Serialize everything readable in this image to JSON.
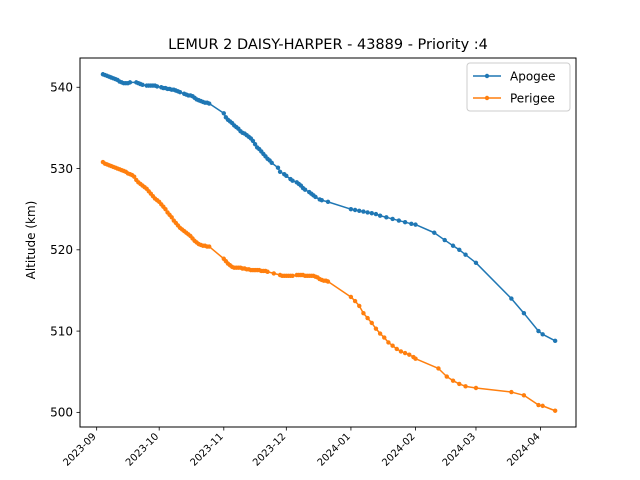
{
  "chart_data": {
    "type": "line",
    "title": "LEMUR 2 DAISY-HARPER - 43889 - Priority :4",
    "xlabel": "",
    "ylabel": "Altitude (km)",
    "xlim": [
      "2023-08-24",
      "2024-04-18"
    ],
    "ylim": [
      498.2,
      543.6
    ],
    "y_ticks": [
      500,
      510,
      520,
      530,
      540
    ],
    "x_ticks": [
      "2023-09",
      "2023-10",
      "2023-11",
      "2023-12",
      "2024-01",
      "2024-02",
      "2024-03",
      "2024-04"
    ],
    "grid": false,
    "legend_position": "upper right",
    "series": [
      {
        "name": "Apogee",
        "color": "#1f77b4",
        "x": [
          "2023-09-04",
          "2023-09-05",
          "2023-09-06",
          "2023-09-07",
          "2023-09-08",
          "2023-09-09",
          "2023-09-10",
          "2023-09-11",
          "2023-09-12",
          "2023-09-13",
          "2023-09-14",
          "2023-09-15",
          "2023-09-16",
          "2023-09-17",
          "2023-09-20",
          "2023-09-21",
          "2023-09-22",
          "2023-09-23",
          "2023-09-25",
          "2023-09-26",
          "2023-09-27",
          "2023-09-28",
          "2023-09-29",
          "2023-09-30",
          "2023-10-02",
          "2023-10-03",
          "2023-10-04",
          "2023-10-05",
          "2023-10-06",
          "2023-10-07",
          "2023-10-08",
          "2023-10-09",
          "2023-10-10",
          "2023-10-11",
          "2023-10-13",
          "2023-10-14",
          "2023-10-15",
          "2023-10-16",
          "2023-10-17",
          "2023-10-18",
          "2023-10-19",
          "2023-10-20",
          "2023-10-21",
          "2023-10-22",
          "2023-10-23",
          "2023-10-24",
          "2023-10-25",
          "2023-11-01",
          "2023-11-02",
          "2023-11-03",
          "2023-11-04",
          "2023-11-05",
          "2023-11-06",
          "2023-11-07",
          "2023-11-08",
          "2023-11-09",
          "2023-11-10",
          "2023-11-11",
          "2023-11-12",
          "2023-11-13",
          "2023-11-14",
          "2023-11-15",
          "2023-11-16",
          "2023-11-17",
          "2023-11-18",
          "2023-11-19",
          "2023-11-20",
          "2023-11-21",
          "2023-11-22",
          "2023-11-23",
          "2023-11-24",
          "2023-11-27",
          "2023-11-28",
          "2023-11-30",
          "2023-12-01",
          "2023-12-03",
          "2023-12-04",
          "2023-12-06",
          "2023-12-07",
          "2023-12-08",
          "2023-12-09",
          "2023-12-10",
          "2023-12-12",
          "2023-12-13",
          "2023-12-14",
          "2023-12-15",
          "2023-12-17",
          "2023-12-18",
          "2023-12-21",
          "2024-01-01",
          "2024-01-03",
          "2024-01-05",
          "2024-01-07",
          "2024-01-09",
          "2024-01-11",
          "2024-01-13",
          "2024-01-15",
          "2024-01-18",
          "2024-01-21",
          "2024-01-24",
          "2024-01-27",
          "2024-01-30",
          "2024-02-01",
          "2024-02-10",
          "2024-02-15",
          "2024-02-19",
          "2024-02-22",
          "2024-02-25",
          "2024-03-01",
          "2024-03-18",
          "2024-03-24",
          "2024-03-31",
          "2024-04-02",
          "2024-04-08"
        ],
        "values": [
          541.6,
          541.5,
          541.4,
          541.3,
          541.2,
          541.1,
          541.0,
          540.9,
          540.7,
          540.6,
          540.5,
          540.5,
          540.5,
          540.6,
          540.6,
          540.5,
          540.4,
          540.3,
          540.2,
          540.2,
          540.2,
          540.2,
          540.2,
          540.1,
          540.0,
          539.9,
          539.9,
          539.8,
          539.8,
          539.7,
          539.7,
          539.6,
          539.5,
          539.4,
          539.2,
          539.1,
          539.0,
          539.0,
          538.9,
          538.7,
          538.5,
          538.4,
          538.3,
          538.2,
          538.1,
          538.1,
          538.0,
          536.8,
          536.3,
          536.0,
          535.8,
          535.6,
          535.3,
          535.1,
          534.9,
          534.6,
          534.4,
          534.3,
          534.1,
          533.9,
          533.7,
          533.4,
          533.0,
          532.6,
          532.4,
          532.1,
          531.8,
          531.5,
          531.2,
          531.0,
          530.7,
          530.1,
          529.6,
          529.3,
          529.1,
          528.7,
          528.5,
          528.3,
          528.1,
          527.9,
          527.6,
          527.4,
          527.1,
          526.9,
          526.7,
          526.5,
          526.2,
          526.1,
          525.9,
          525.0,
          524.9,
          524.8,
          524.7,
          524.6,
          524.5,
          524.4,
          524.2,
          524.0,
          523.8,
          523.6,
          523.4,
          523.2,
          523.1,
          522.1,
          521.2,
          520.5,
          520.0,
          519.4,
          518.4,
          514.0,
          512.2,
          510.0,
          509.6,
          508.8
        ]
      },
      {
        "name": "Perigee",
        "color": "#ff7f0e",
        "x": [
          "2023-09-04",
          "2023-09-05",
          "2023-09-06",
          "2023-09-07",
          "2023-09-08",
          "2023-09-09",
          "2023-09-10",
          "2023-09-11",
          "2023-09-12",
          "2023-09-13",
          "2023-09-14",
          "2023-09-15",
          "2023-09-16",
          "2023-09-17",
          "2023-09-18",
          "2023-09-19",
          "2023-09-20",
          "2023-09-21",
          "2023-09-22",
          "2023-09-23",
          "2023-09-24",
          "2023-09-25",
          "2023-09-26",
          "2023-09-27",
          "2023-09-28",
          "2023-09-29",
          "2023-09-30",
          "2023-10-01",
          "2023-10-02",
          "2023-10-03",
          "2023-10-04",
          "2023-10-05",
          "2023-10-06",
          "2023-10-07",
          "2023-10-08",
          "2023-10-09",
          "2023-10-10",
          "2023-10-11",
          "2023-10-12",
          "2023-10-13",
          "2023-10-14",
          "2023-10-15",
          "2023-10-16",
          "2023-10-17",
          "2023-10-18",
          "2023-10-19",
          "2023-10-20",
          "2023-10-21",
          "2023-10-22",
          "2023-10-23",
          "2023-10-24",
          "2023-10-25",
          "2023-11-01",
          "2023-11-02",
          "2023-11-03",
          "2023-11-04",
          "2023-11-05",
          "2023-11-06",
          "2023-11-07",
          "2023-11-08",
          "2023-11-09",
          "2023-11-10",
          "2023-11-11",
          "2023-11-12",
          "2023-11-13",
          "2023-11-14",
          "2023-11-15",
          "2023-11-16",
          "2023-11-17",
          "2023-11-18",
          "2023-11-19",
          "2023-11-20",
          "2023-11-21",
          "2023-11-22",
          "2023-11-25",
          "2023-11-28",
          "2023-11-29",
          "2023-11-30",
          "2023-12-01",
          "2023-12-02",
          "2023-12-03",
          "2023-12-04",
          "2023-12-06",
          "2023-12-07",
          "2023-12-08",
          "2023-12-09",
          "2023-12-10",
          "2023-12-11",
          "2023-12-12",
          "2023-12-13",
          "2023-12-14",
          "2023-12-15",
          "2023-12-16",
          "2023-12-17",
          "2023-12-18",
          "2023-12-19",
          "2023-12-20",
          "2023-12-21",
          "2024-01-01",
          "2024-01-03",
          "2024-01-05",
          "2024-01-07",
          "2024-01-09",
          "2024-01-11",
          "2024-01-13",
          "2024-01-15",
          "2024-01-17",
          "2024-01-19",
          "2024-01-21",
          "2024-01-23",
          "2024-01-25",
          "2024-01-27",
          "2024-01-29",
          "2024-01-31",
          "2024-02-01",
          "2024-02-12",
          "2024-02-16",
          "2024-02-19",
          "2024-02-22",
          "2024-02-25",
          "2024-03-01",
          "2024-03-18",
          "2024-03-24",
          "2024-03-31",
          "2024-04-02",
          "2024-04-08"
        ],
        "values": [
          530.8,
          530.6,
          530.5,
          530.4,
          530.3,
          530.2,
          530.1,
          530.0,
          529.9,
          529.8,
          529.7,
          529.6,
          529.4,
          529.3,
          529.2,
          529.0,
          528.6,
          528.3,
          528.1,
          527.9,
          527.7,
          527.5,
          527.2,
          526.9,
          526.6,
          526.3,
          526.1,
          525.9,
          525.6,
          525.3,
          525.0,
          524.6,
          524.3,
          524.0,
          523.6,
          523.3,
          523.0,
          522.7,
          522.5,
          522.3,
          522.1,
          521.9,
          521.7,
          521.4,
          521.1,
          520.9,
          520.7,
          520.6,
          520.5,
          520.5,
          520.4,
          520.4,
          518.9,
          518.6,
          518.3,
          518.1,
          517.9,
          517.8,
          517.8,
          517.8,
          517.8,
          517.7,
          517.7,
          517.6,
          517.6,
          517.5,
          517.5,
          517.5,
          517.5,
          517.5,
          517.4,
          517.4,
          517.4,
          517.3,
          517.1,
          516.9,
          516.8,
          516.8,
          516.8,
          516.8,
          516.8,
          516.8,
          516.9,
          516.9,
          516.9,
          516.9,
          516.8,
          516.8,
          516.8,
          516.8,
          516.8,
          516.7,
          516.6,
          516.4,
          516.3,
          516.2,
          516.2,
          516.1,
          514.2,
          513.7,
          513.1,
          512.2,
          511.6,
          511.0,
          510.3,
          509.7,
          509.2,
          508.6,
          508.2,
          507.8,
          507.5,
          507.3,
          507.1,
          506.8,
          506.6,
          505.4,
          504.4,
          503.9,
          503.5,
          503.2,
          503.0,
          502.5,
          502.1,
          500.9,
          500.8,
          500.2
        ]
      }
    ]
  }
}
